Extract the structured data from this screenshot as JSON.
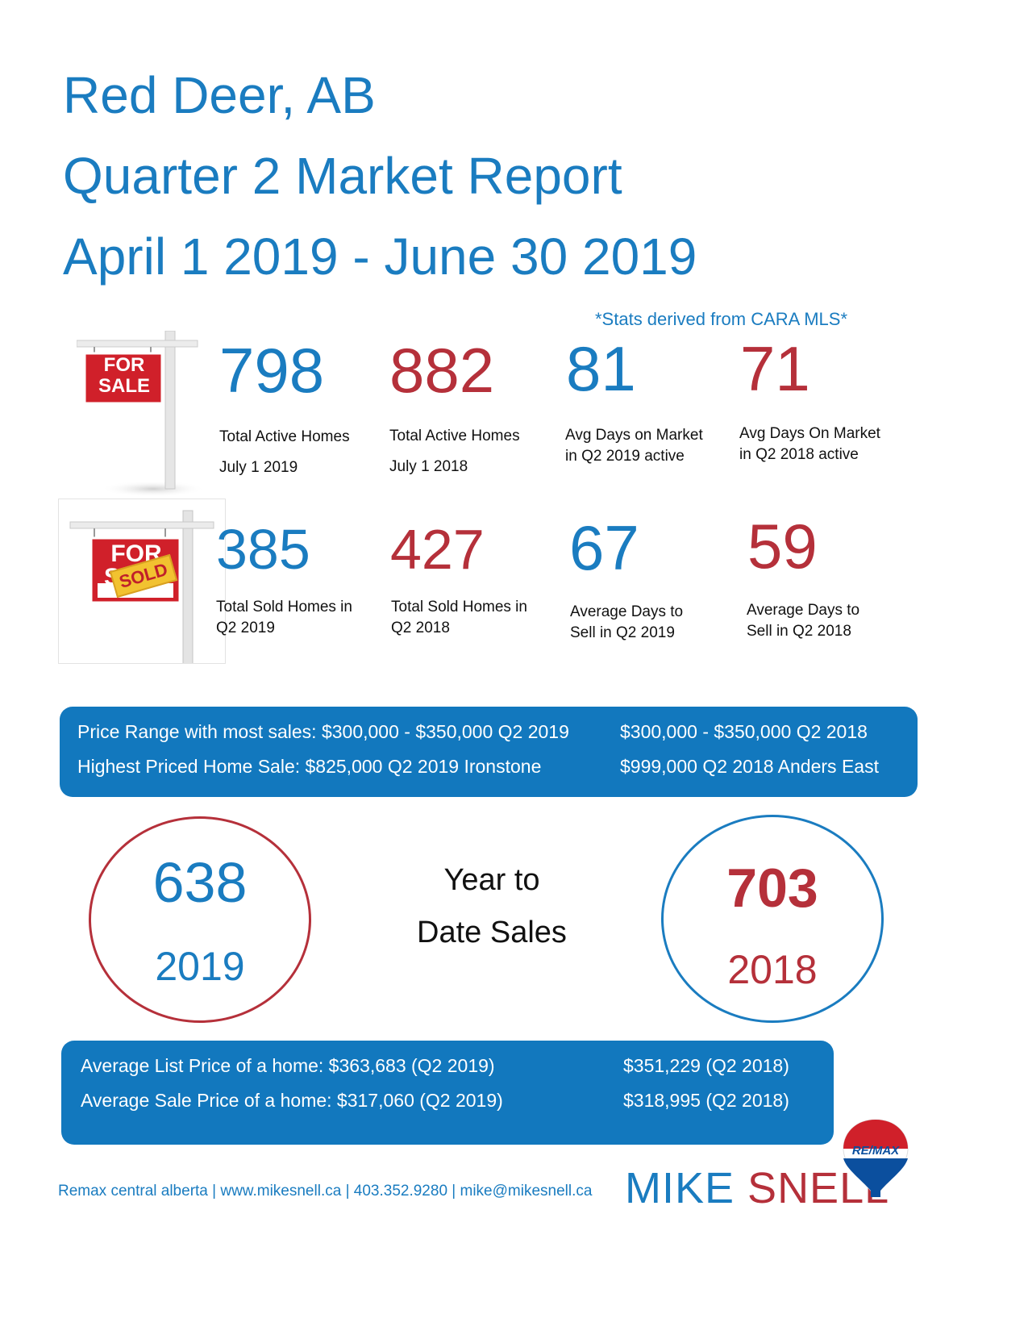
{
  "header": {
    "line1": "Red Deer, AB",
    "line2": "Quarter 2 Market Report",
    "line3": "April 1 2019 -  June 30 2019",
    "stats_note": "*Stats derived from CARA MLS*"
  },
  "for_sale_sign": {
    "line1": "FOR",
    "line2": "SALE"
  },
  "sold_sign": {
    "bg_text": "FOR SALE",
    "rider": "SOLD"
  },
  "active_stats": [
    {
      "value": "798",
      "line1": "Total Active Homes",
      "line2": "July 1 2019",
      "color": "#1a7cc0"
    },
    {
      "value": "882",
      "line1": "Total Active Homes",
      "line2": "July 1 2018",
      "color": "#b5303a"
    },
    {
      "value": "81",
      "line1": "Avg Days on Market",
      "line2": "in Q2 2019 active",
      "color": "#1a7cc0"
    },
    {
      "value": "71",
      "line1": "Avg Days On Market",
      "line2": "in Q2 2018  active",
      "color": "#b5303a"
    }
  ],
  "sold_stats": [
    {
      "value": "385",
      "line1": "Total Sold Homes in",
      "line2": "Q2 2019",
      "color": "#1a7cc0"
    },
    {
      "value": "427",
      "line1": "Total Sold Homes in",
      "line2": "Q2 2018",
      "color": "#b5303a"
    },
    {
      "value": "67",
      "line1": "Average Days to",
      "line2": "Sell in Q2 2019",
      "color": "#1a7cc0"
    },
    {
      "value": "59",
      "line1": "Average Days to",
      "line2": "Sell in  Q2 2018",
      "color": "#b5303a"
    }
  ],
  "price_band": {
    "row1_left": "Price Range with most sales: $300,000 - $350,000 Q2 2019",
    "row1_right": "$300,000 - $350,000 Q2 2018",
    "row2_left": "Highest Priced Home Sale: $825,000 Q2 2019 Ironstone",
    "row2_right": "$999,000 Q2 2018 Anders East"
  },
  "ytd": {
    "label_line1": "Year to",
    "label_line2": "Date Sales",
    "left": {
      "value": "638",
      "year": "2019"
    },
    "right": {
      "value": "703",
      "year": "2018"
    }
  },
  "avg_band": {
    "row1_left": "Average List Price of a home: $363,683 (Q2 2019)",
    "row1_right": "$351,229 (Q2 2018)",
    "row2_left": "Average Sale Price of a home: $317,060 (Q2 2019)",
    "row2_right": "$318,995 (Q2 2018)"
  },
  "footer": {
    "contact": "Remax central alberta | www.mikesnell.ca | 403.352.9280 | mike@mikesnell.ca",
    "brand_first": "MIKE",
    "brand_last": "SNELL",
    "logo_text": "RE/MAX"
  },
  "colors": {
    "brand_blue": "#1a7cc0",
    "brand_red": "#b5303a",
    "band_blue": "#1278be"
  }
}
